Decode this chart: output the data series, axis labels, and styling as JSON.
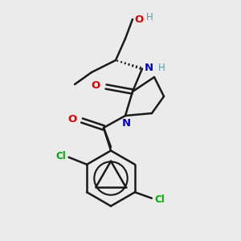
{
  "background_color": "#ebebeb",
  "bond_color": "#1a1a1a",
  "atom_colors": {
    "O": "#e00000",
    "N": "#0000e0",
    "Cl": "#00aa00",
    "H_O": "#5a9a9a",
    "H_N": "#5a9a9a"
  },
  "figsize": [
    3.0,
    3.0
  ],
  "dpi": 100
}
